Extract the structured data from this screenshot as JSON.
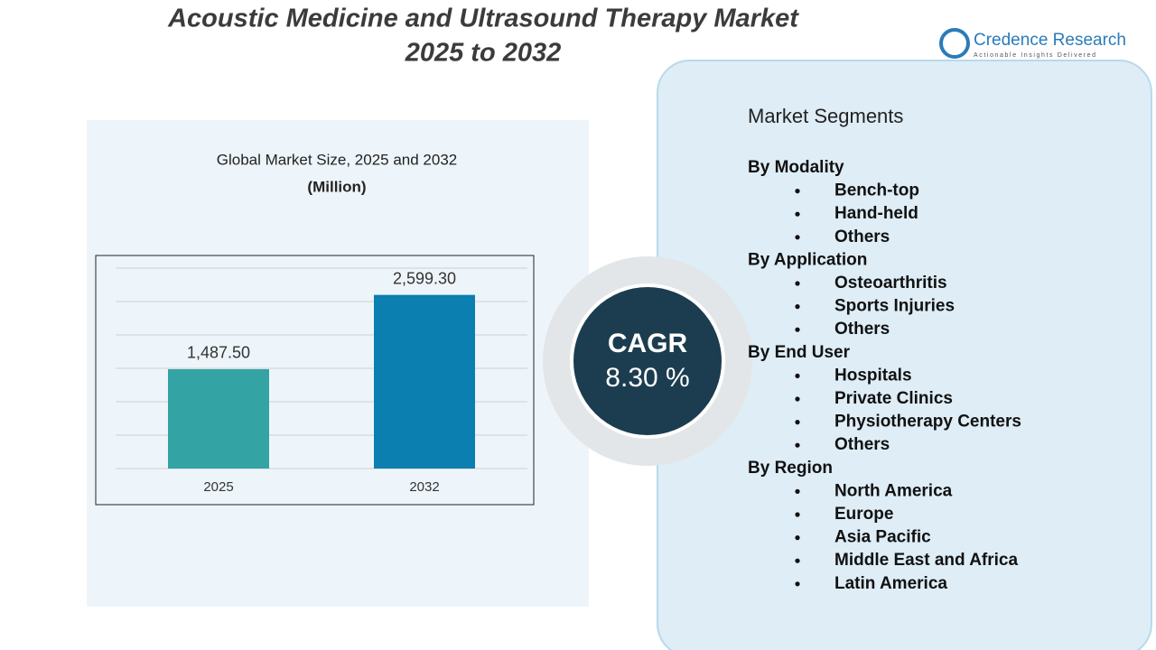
{
  "header": {
    "title_line1": "Acoustic Medicine and Ultrasound Therapy Market",
    "title_line2": "2025 to 2032"
  },
  "logo": {
    "name": "Credence Research",
    "tagline": "Actionable Insights Delivered"
  },
  "chart_data": {
    "type": "bar",
    "title": "Global Market Size, 2025 and 2032",
    "subtitle": "(Million)",
    "categories": [
      "2025",
      "2032"
    ],
    "values": [
      1487.5,
      2599.3
    ],
    "value_labels": [
      "1,487.50",
      "2,599.30"
    ],
    "colors": [
      "#33a3a3",
      "#0a7fb0"
    ],
    "ylim": [
      0,
      3000
    ],
    "yticks": [
      0,
      500,
      1000,
      1500,
      2000,
      2500,
      3000
    ],
    "grid": true
  },
  "cagr": {
    "label": "CAGR",
    "value": "8.30 %"
  },
  "segments": {
    "title": "Market Segments",
    "groups": [
      {
        "heading": "By Modality",
        "items": [
          "Bench-top",
          "Hand-held",
          "Others"
        ]
      },
      {
        "heading": "By Application",
        "items": [
          "Osteoarthritis",
          "Sports Injuries",
          "Others"
        ]
      },
      {
        "heading": "By End User",
        "items": [
          "Hospitals",
          "Private Clinics",
          "Physiotherapy Centers",
          "Others"
        ]
      },
      {
        "heading": "By Region",
        "items": [
          "North America",
          "Europe",
          "Asia Pacific",
          "Middle East and Africa",
          "Latin America"
        ]
      }
    ]
  }
}
